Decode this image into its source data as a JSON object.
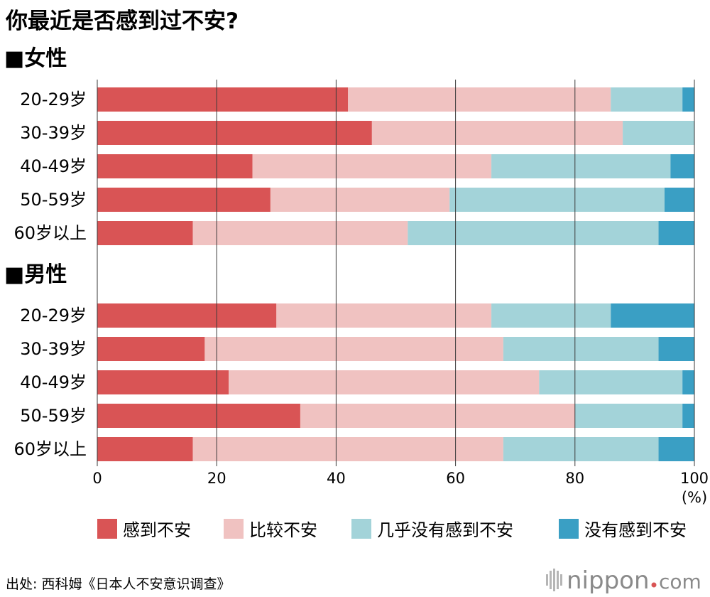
{
  "title": "你最近是否感到过不安?",
  "source": "出处: 西科姆《日本人不安意识调查》",
  "brand": {
    "name": "nippon",
    "tld": "com"
  },
  "colors": {
    "感到不安": "#d95455",
    "比较不安": "#f0c2c1",
    "几乎没有感到不安": "#a3d3d9",
    "没有感到不安": "#3a9fc4"
  },
  "chart_data": {
    "type": "bar",
    "orientation": "horizontal",
    "stacked": true,
    "xlim": [
      0,
      100
    ],
    "xticks": [
      0,
      20,
      40,
      60,
      80,
      100
    ],
    "unit": "(%)",
    "legend_position": "bottom",
    "series_names": [
      "感到不安",
      "比较不安",
      "几乎没有感到不安",
      "没有感到不安"
    ],
    "groups": [
      {
        "label": "■女性",
        "categories": [
          "20-29岁",
          "30-39岁",
          "40-49岁",
          "50-59岁",
          "60岁以上"
        ],
        "values": [
          [
            42,
            44,
            12,
            2
          ],
          [
            46,
            42,
            12,
            0
          ],
          [
            26,
            40,
            30,
            4
          ],
          [
            29,
            30,
            36,
            5
          ],
          [
            16,
            36,
            42,
            6
          ]
        ]
      },
      {
        "label": "■男性",
        "categories": [
          "20-29岁",
          "30-39岁",
          "40-49岁",
          "50-59岁",
          "60岁以上"
        ],
        "values": [
          [
            30,
            36,
            20,
            14
          ],
          [
            18,
            50,
            26,
            6
          ],
          [
            22,
            52,
            24,
            2
          ],
          [
            34,
            46,
            18,
            2
          ],
          [
            16,
            52,
            26,
            6
          ]
        ]
      }
    ]
  }
}
